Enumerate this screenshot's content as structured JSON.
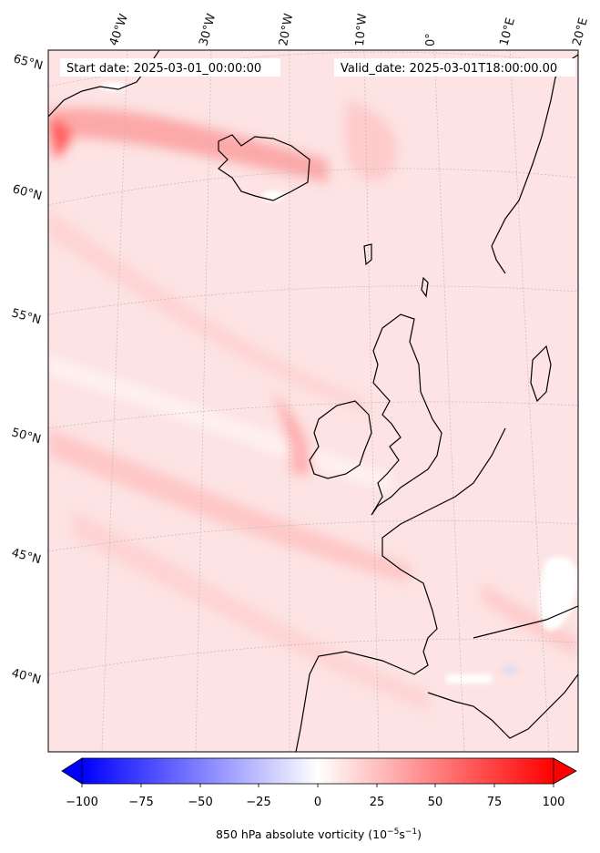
{
  "annotations": {
    "start_date": "Start date: 2025-03-01_00:00:00",
    "valid_date": "Valid_date: 2025-03-01T18:00:00.00"
  },
  "longitude_labels": [
    "40°W",
    "30°W",
    "20°W",
    "10°W",
    "0°",
    "10°E",
    "20°E"
  ],
  "latitude_labels": [
    "65°N",
    "60°N",
    "55°N",
    "50°N",
    "45°N",
    "40°N"
  ],
  "colorbar": {
    "ticks": [
      "−100",
      "−75",
      "−50",
      "−25",
      "0",
      "25",
      "50",
      "75",
      "100"
    ],
    "range": [
      -100,
      100
    ],
    "title_main": "850 hPa absolute vorticity (10",
    "title_exp1": "−5",
    "title_mid": "s",
    "title_exp2": "−1",
    "title_end": ")",
    "colormap": "bwr",
    "colors": {
      "neg": "#0000ff",
      "zero": "#ffffff",
      "pos": "#ff0000"
    }
  },
  "map": {
    "land_color": "#fde9e9",
    "ocean_base_color": "#fde3e3",
    "coastline_color": "#000000",
    "gridline_color": "#bbbbbb"
  }
}
